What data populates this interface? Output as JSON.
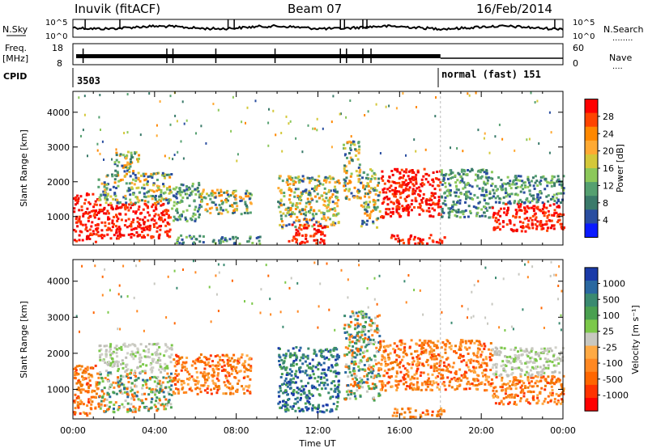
{
  "header": {
    "station": "Inuvik (fitACF)",
    "beam": "Beam 07",
    "date": "16/Feb/2014"
  },
  "strips": {
    "nsky": {
      "label": "N.Sky",
      "ticks": [
        "10^5",
        "10^0"
      ]
    },
    "nsearch": {
      "label": "N.Search",
      "ticks": [
        "10^5",
        "10^0"
      ]
    },
    "freq": {
      "label_line1": "Freq.",
      "label_line2": "[MHz]",
      "ticks": [
        "18",
        "8"
      ]
    },
    "nave": {
      "label": "Nave",
      "ticks": [
        "60",
        "0"
      ]
    },
    "cpid": {
      "label": "CPID",
      "mode1": "3503",
      "mode2": "normal (fast) 151",
      "switch_hour": 18
    }
  },
  "chart_data": [
    {
      "type": "heatmap",
      "panel": "power",
      "xlabel": "",
      "ylabel": "Slant Range [km]",
      "xlim_hours": [
        0,
        24
      ],
      "ylim_km": [
        180,
        4600
      ],
      "yticks": [
        "1000",
        "2000",
        "3000",
        "4000"
      ],
      "colorbar": {
        "label": "Power [dB]",
        "ticks": [
          "28",
          "24",
          "20",
          "16",
          "12",
          "8",
          "4"
        ],
        "colors": [
          "#ff0000",
          "#ff4400",
          "#ff8800",
          "#ffaa33",
          "#d4c83a",
          "#8cc85a",
          "#55a070",
          "#3a7a6a",
          "#2a4ea0",
          "#0a1aff"
        ]
      },
      "echo_regions": [
        {
          "h0": 0.0,
          "h1": 1.2,
          "r0": 300,
          "r1": 1700,
          "level": "high"
        },
        {
          "h0": 1.2,
          "h1": 4.8,
          "r0": 400,
          "r1": 1400,
          "level": "high"
        },
        {
          "h0": 1.2,
          "h1": 4.8,
          "r0": 1400,
          "r1": 2300,
          "level": "mid"
        },
        {
          "h0": 2.0,
          "h1": 3.2,
          "r0": 2300,
          "r1": 2900,
          "level": "mid"
        },
        {
          "h0": 4.8,
          "h1": 6.2,
          "r0": 900,
          "r1": 2000,
          "level": "low"
        },
        {
          "h0": 5.0,
          "h1": 6.4,
          "r0": 250,
          "r1": 500,
          "level": "low"
        },
        {
          "h0": 6.2,
          "h1": 8.7,
          "r0": 1100,
          "r1": 1800,
          "level": "mid"
        },
        {
          "h0": 6.8,
          "h1": 9.4,
          "r0": 250,
          "r1": 450,
          "level": "low"
        },
        {
          "h0": 10.0,
          "h1": 13.0,
          "r0": 700,
          "r1": 2200,
          "level": "mid"
        },
        {
          "h0": 10.5,
          "h1": 12.3,
          "r0": 250,
          "r1": 800,
          "level": "high"
        },
        {
          "h0": 13.2,
          "h1": 14.0,
          "r0": 1500,
          "r1": 3200,
          "level": "mid"
        },
        {
          "h0": 14.0,
          "h1": 15.0,
          "r0": 700,
          "r1": 2400,
          "level": "mid"
        },
        {
          "h0": 15.0,
          "h1": 18.0,
          "r0": 1000,
          "r1": 2400,
          "level": "high"
        },
        {
          "h0": 15.5,
          "h1": 18.2,
          "r0": 250,
          "r1": 500,
          "level": "high"
        },
        {
          "h0": 18.0,
          "h1": 20.5,
          "r0": 1000,
          "r1": 2400,
          "level": "low"
        },
        {
          "h0": 20.5,
          "h1": 24.0,
          "r0": 600,
          "r1": 1400,
          "level": "high"
        },
        {
          "h0": 20.5,
          "h1": 24.0,
          "r0": 1400,
          "r1": 2200,
          "level": "low"
        }
      ]
    },
    {
      "type": "heatmap",
      "panel": "velocity",
      "xlabel": "Time UT",
      "ylabel": "Slant Range [km]",
      "xlim_hours": [
        0,
        24
      ],
      "ylim_km": [
        180,
        4600
      ],
      "yticks": [
        "1000",
        "2000",
        "3000",
        "4000"
      ],
      "xticks": [
        "00:00",
        "04:00",
        "08:00",
        "12:00",
        "16:00",
        "20:00",
        "00:00"
      ],
      "colorbar": {
        "label": "Velocity [m s⁻¹]",
        "ticks": [
          "1000",
          "500",
          "100",
          "25",
          "-25",
          "-100",
          "-500",
          "-1000"
        ],
        "colors": [
          "#1a3aa8",
          "#2a68a0",
          "#3a8a70",
          "#4aa050",
          "#7cc84a",
          "#c8c8c0",
          "#ffaa44",
          "#ff8822",
          "#ff6600",
          "#ff3300",
          "#ff0000"
        ]
      },
      "echo_regions": [
        {
          "h0": 0.0,
          "h1": 1.2,
          "r0": 300,
          "r1": 1700,
          "level": "away"
        },
        {
          "h0": 1.2,
          "h1": 4.8,
          "r0": 400,
          "r1": 1500,
          "level": "mixed"
        },
        {
          "h0": 1.2,
          "h1": 4.8,
          "r0": 1500,
          "r1": 2300,
          "level": "gray"
        },
        {
          "h0": 4.8,
          "h1": 8.7,
          "r0": 900,
          "r1": 2000,
          "level": "away"
        },
        {
          "h0": 10.0,
          "h1": 13.0,
          "r0": 400,
          "r1": 2200,
          "level": "toward"
        },
        {
          "h0": 13.2,
          "h1": 15.0,
          "r0": 700,
          "r1": 3200,
          "level": "mixed"
        },
        {
          "h0": 15.0,
          "h1": 20.5,
          "r0": 1000,
          "r1": 2400,
          "level": "away"
        },
        {
          "h0": 15.5,
          "h1": 18.2,
          "r0": 250,
          "r1": 500,
          "level": "away"
        },
        {
          "h0": 20.5,
          "h1": 24.0,
          "r0": 600,
          "r1": 1400,
          "level": "away"
        },
        {
          "h0": 20.5,
          "h1": 24.0,
          "r0": 1400,
          "r1": 2200,
          "level": "gray"
        }
      ]
    }
  ]
}
